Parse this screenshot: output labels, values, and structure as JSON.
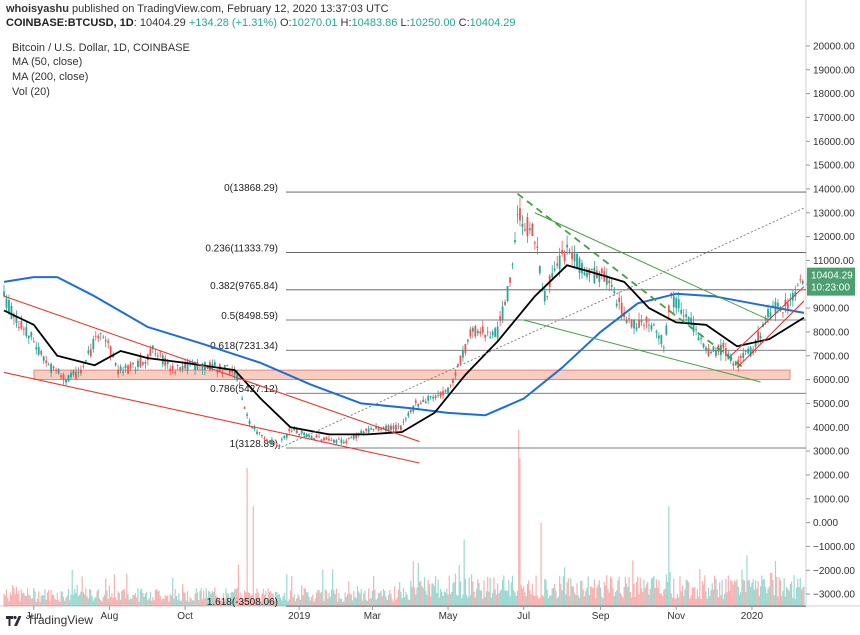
{
  "header": {
    "publisher": "whoisyashu",
    "published_text": "published on TradingView.com, February 12, 2020 13:37:03 UTC",
    "symbol": "COINBASE:BTCUSD, 1D",
    "last": "10404.29",
    "change": "+134.28 (+1.31%)",
    "ohlc": [
      {
        "k": "O:",
        "v": "10270.01"
      },
      {
        "k": "H:",
        "v": "10483.86"
      },
      {
        "k": "L:",
        "v": "10250.00"
      },
      {
        "k": "C:",
        "v": "10404.29"
      }
    ]
  },
  "colors": {
    "up": "#26a69a",
    "down": "#ef5350",
    "ma50": "#000000",
    "ma200": "#1e6ed8",
    "fib": "#555555",
    "channel_red": "#e53935",
    "channel_green": "#43a047",
    "zone": "#f4a48c",
    "price_tag": "#4c9f70"
  },
  "chart_data": {
    "type": "candlestick",
    "title": "Bitcoin / U.S. Dollar, 1D, COINBASE",
    "legend": [
      "MA (50, close)",
      "MA (200, close)",
      "Vol (20)"
    ],
    "x_tick_labels": [
      "Jun",
      "Aug",
      "Oct",
      "2019",
      "Mar",
      "May",
      "Jul",
      "Sep",
      "Nov",
      "2020"
    ],
    "y_tick_labels": [
      "20000.00",
      "19000.00",
      "18000.00",
      "17000.00",
      "16000.00",
      "15000.00",
      "14000.00",
      "13000.00",
      "12000.00",
      "11000.00",
      "10000.00",
      "9000.00",
      "8000.00",
      "7000.00",
      "6000.00",
      "5000.00",
      "4000.00",
      "3000.00",
      "2000.00",
      "1000.00",
      "0.000",
      "−1000.00",
      "−2000.00",
      "−3000.00"
    ],
    "ylim": [
      -3500,
      20500
    ],
    "current_price": "10404.29",
    "countdown": "10:23:00",
    "price_path": [
      [
        "2018-05-08",
        9400
      ],
      [
        "2018-05-20",
        8300
      ],
      [
        "2018-06-01",
        7600
      ],
      [
        "2018-06-14",
        6500
      ],
      [
        "2018-06-28",
        6000
      ],
      [
        "2018-07-10",
        6400
      ],
      [
        "2018-07-25",
        8200
      ],
      [
        "2018-08-08",
        6400
      ],
      [
        "2018-08-22",
        6500
      ],
      [
        "2018-09-05",
        7200
      ],
      [
        "2018-09-20",
        6500
      ],
      [
        "2018-10-10",
        6600
      ],
      [
        "2018-11-10",
        6400
      ],
      [
        "2018-11-20",
        4500
      ],
      [
        "2018-11-25",
        3900
      ],
      [
        "2018-12-10",
        3400
      ],
      [
        "2018-12-15",
        3200
      ],
      [
        "2018-12-25",
        3900
      ],
      [
        "2019-01-10",
        3600
      ],
      [
        "2019-02-07",
        3400
      ],
      [
        "2019-02-25",
        3900
      ],
      [
        "2019-03-25",
        4000
      ],
      [
        "2019-04-05",
        5000
      ],
      [
        "2019-05-01",
        5500
      ],
      [
        "2019-05-20",
        8000
      ],
      [
        "2019-06-10",
        8000
      ],
      [
        "2019-06-20",
        10000
      ],
      [
        "2019-06-26",
        13000
      ],
      [
        "2019-07-10",
        12000
      ],
      [
        "2019-07-17",
        9500
      ],
      [
        "2019-08-05",
        11500
      ],
      [
        "2019-08-20",
        10500
      ],
      [
        "2019-09-05",
        10300
      ],
      [
        "2019-09-25",
        8300
      ],
      [
        "2019-10-10",
        8500
      ],
      [
        "2019-10-23",
        7500
      ],
      [
        "2019-10-27",
        9500
      ],
      [
        "2019-11-10",
        8800
      ],
      [
        "2019-11-25",
        7100
      ],
      [
        "2019-12-10",
        7300
      ],
      [
        "2019-12-18",
        6600
      ],
      [
        "2020-01-01",
        7200
      ],
      [
        "2020-01-15",
        8800
      ],
      [
        "2020-02-01",
        9300
      ],
      [
        "2020-02-12",
        10404
      ]
    ],
    "ma50": [
      [
        "2018-05-08",
        8900
      ],
      [
        "2018-06-01",
        8300
      ],
      [
        "2018-06-20",
        7000
      ],
      [
        "2018-07-20",
        6600
      ],
      [
        "2018-08-10",
        7200
      ],
      [
        "2018-09-01",
        6900
      ],
      [
        "2018-10-01",
        6700
      ],
      [
        "2018-11-10",
        6400
      ],
      [
        "2018-12-01",
        5200
      ],
      [
        "2018-12-25",
        4000
      ],
      [
        "2019-01-25",
        3700
      ],
      [
        "2019-02-25",
        3700
      ],
      [
        "2019-03-25",
        3800
      ],
      [
        "2019-04-20",
        4600
      ],
      [
        "2019-05-15",
        6200
      ],
      [
        "2019-06-10",
        7600
      ],
      [
        "2019-07-10",
        9500
      ],
      [
        "2019-08-05",
        10800
      ],
      [
        "2019-08-25",
        10500
      ],
      [
        "2019-09-20",
        10100
      ],
      [
        "2019-10-10",
        9000
      ],
      [
        "2019-11-01",
        8400
      ],
      [
        "2019-11-25",
        8300
      ],
      [
        "2019-12-20",
        7400
      ],
      [
        "2020-01-15",
        7700
      ],
      [
        "2020-02-12",
        8600
      ]
    ],
    "ma200": [
      [
        "2018-05-08",
        10100
      ],
      [
        "2018-06-01",
        10300
      ],
      [
        "2018-06-20",
        10300
      ],
      [
        "2018-07-20",
        9500
      ],
      [
        "2018-09-01",
        8200
      ],
      [
        "2018-10-15",
        7500
      ],
      [
        "2018-12-01",
        6700
      ],
      [
        "2019-01-10",
        5800
      ],
      [
        "2019-02-20",
        5000
      ],
      [
        "2019-04-01",
        4800
      ],
      [
        "2019-05-01",
        4600
      ],
      [
        "2019-05-31",
        4500
      ],
      [
        "2019-07-01",
        5200
      ],
      [
        "2019-08-01",
        6500
      ],
      [
        "2019-09-01",
        8000
      ],
      [
        "2019-10-01",
        9200
      ],
      [
        "2019-11-01",
        9600
      ],
      [
        "2019-12-01",
        9500
      ],
      [
        "2020-01-01",
        9200
      ],
      [
        "2020-02-12",
        8800
      ]
    ],
    "fibonacci": [
      {
        "label": "0(13868.29)",
        "value": 13868.29
      },
      {
        "label": "0.236(11333.79)",
        "value": 11333.79
      },
      {
        "label": "0.382(9765.84)",
        "value": 9765.84
      },
      {
        "label": "0.5(8498.59)",
        "value": 8498.59
      },
      {
        "label": "0.618(7231.34)",
        "value": 7231.34
      },
      {
        "label": "0.786(5427.12)",
        "value": 5427.12
      },
      {
        "label": "1(3128.89)",
        "value": 3128.89
      },
      {
        "label": "1.618(-3508.06)",
        "value": -3508.06
      }
    ],
    "support_zone": {
      "from": 6000,
      "to": 6400
    },
    "red_channel_lines": [
      [
        [
          "2018-05-08",
          9500
        ],
        [
          "2019-04-08",
          3400
        ]
      ],
      [
        [
          "2018-05-08",
          6300
        ],
        [
          "2019-04-08",
          2500
        ]
      ]
    ],
    "green_channel_lines": [
      [
        [
          "2019-06-26",
          13800
        ],
        [
          "2019-12-25",
          6500
        ]
      ],
      [
        [
          "2019-07-01",
          8500
        ],
        [
          "2020-01-08",
          5900
        ]
      ],
      [
        [
          "2019-07-10",
          13000
        ],
        [
          "2020-01-15",
          8500
        ]
      ]
    ],
    "red_rising_lines": [
      [
        [
          "2019-12-15",
          7000
        ],
        [
          "2020-02-12",
          9900
        ]
      ],
      [
        [
          "2019-12-20",
          6500
        ],
        [
          "2020-02-12",
          9300
        ]
      ]
    ],
    "trend_line_dotted": [
      [
        "2018-12-15",
        3100
      ],
      [
        "2020-02-12",
        13200
      ]
    ]
  }
}
